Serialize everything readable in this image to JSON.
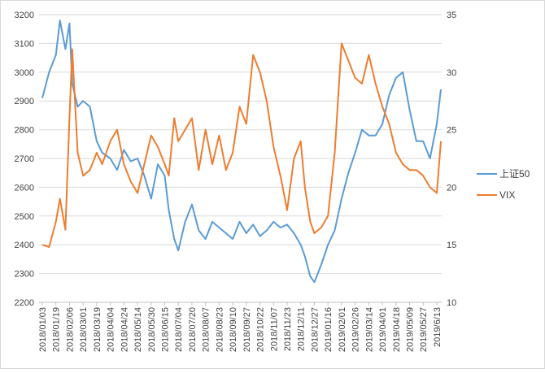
{
  "chart_data": {
    "type": "line",
    "title": "",
    "xlabel": "",
    "ylabel": "",
    "legend_position": "right",
    "grid": "horizontal",
    "x_ticks": [
      "2018/01/03",
      "2018/01/19",
      "2018/02/06",
      "2018/03/01",
      "2018/03/19",
      "2018/04/04",
      "2018/04/24",
      "2018/05/14",
      "2018/05/30",
      "2018/06/15",
      "2018/07/04",
      "2018/07/20",
      "2018/08/07",
      "2018/08/23",
      "2018/09/10",
      "2018/09/27",
      "2018/10/22",
      "2018/11/07",
      "2018/11/23",
      "2018/12/11",
      "2018/12/27",
      "2019/01/16",
      "2019/02/01",
      "2019/02/26",
      "2019/03/14",
      "2019/04/01",
      "2019/04/18",
      "2019/05/09",
      "2019/05/27",
      "2019/6/13"
    ],
    "y_left": {
      "min": 2200,
      "max": 3200,
      "step": 100,
      "ticks": [
        "2200",
        "2300",
        "2400",
        "2500",
        "2600",
        "2700",
        "2800",
        "2900",
        "3000",
        "3100",
        "3200"
      ]
    },
    "y_right": {
      "min": 10,
      "max": 35,
      "step": 5,
      "ticks": [
        "10",
        "15",
        "20",
        "25",
        "30",
        "35"
      ]
    },
    "series": [
      {
        "name": "上证50",
        "axis": "left",
        "color": "#5b9bd5",
        "x_tick_index": [
          0,
          0.5,
          1,
          1.3,
          1.7,
          2,
          2.2,
          2.6,
          3,
          3.5,
          4,
          4.4,
          5,
          5.5,
          6,
          6.5,
          7,
          7.5,
          8,
          8.5,
          9,
          9.3,
          9.7,
          10,
          10.5,
          11,
          11.5,
          12,
          12.5,
          13,
          13.5,
          14,
          14.5,
          15,
          15.5,
          16,
          16.5,
          17,
          17.5,
          18,
          18.5,
          19,
          19.3,
          19.7,
          20,
          20.5,
          21,
          21.5,
          22,
          22.5,
          23,
          23.5,
          24,
          24.5,
          25,
          25.5,
          26,
          26.5,
          27,
          27.5,
          28,
          28.5,
          29,
          29.3
        ],
        "values": [
          2910,
          3000,
          3060,
          3180,
          3080,
          3170,
          2960,
          2880,
          2900,
          2880,
          2760,
          2720,
          2700,
          2660,
          2730,
          2690,
          2700,
          2640,
          2560,
          2680,
          2640,
          2520,
          2420,
          2380,
          2480,
          2540,
          2450,
          2420,
          2480,
          2460,
          2440,
          2420,
          2480,
          2440,
          2470,
          2430,
          2450,
          2480,
          2460,
          2470,
          2440,
          2400,
          2360,
          2290,
          2270,
          2330,
          2400,
          2450,
          2560,
          2650,
          2720,
          2800,
          2780,
          2780,
          2820,
          2920,
          2980,
          3000,
          2870,
          2760,
          2760,
          2700,
          2820,
          2940
        ]
      },
      {
        "name": "VIX",
        "axis": "right",
        "color": "#ed7d31",
        "x_tick_index": [
          0,
          0.5,
          1,
          1.3,
          1.7,
          2,
          2.2,
          2.6,
          3,
          3.5,
          4,
          4.4,
          5,
          5.5,
          6,
          6.5,
          7,
          7.5,
          8,
          8.5,
          9,
          9.3,
          9.7,
          10,
          10.5,
          11,
          11.5,
          12,
          12.5,
          13,
          13.5,
          14,
          14.5,
          15,
          15.5,
          16,
          16.5,
          17,
          17.5,
          18,
          18.5,
          19,
          19.3,
          19.7,
          20,
          20.5,
          21,
          21.5,
          22,
          22.5,
          23,
          23.5,
          24,
          24.5,
          25,
          25.5,
          26,
          26.5,
          27,
          27.5,
          28,
          28.5,
          29,
          29.3
        ],
        "values": [
          15,
          14.8,
          17,
          19,
          16.3,
          26,
          32,
          23,
          21,
          21.5,
          23,
          22,
          24,
          25,
          22,
          20.5,
          19.5,
          22,
          24.5,
          23.5,
          22,
          21,
          26,
          24,
          25,
          26,
          21.5,
          25,
          22,
          24.5,
          21.5,
          23,
          27,
          25.5,
          31.5,
          30,
          27.5,
          23.5,
          21,
          18,
          22.5,
          24,
          20,
          17,
          16,
          16.5,
          17.5,
          23,
          32.5,
          31,
          29.5,
          29,
          31.5,
          29,
          27,
          25.5,
          23,
          22,
          21.5,
          21.5,
          21,
          20,
          19.5,
          24
        ]
      }
    ]
  }
}
